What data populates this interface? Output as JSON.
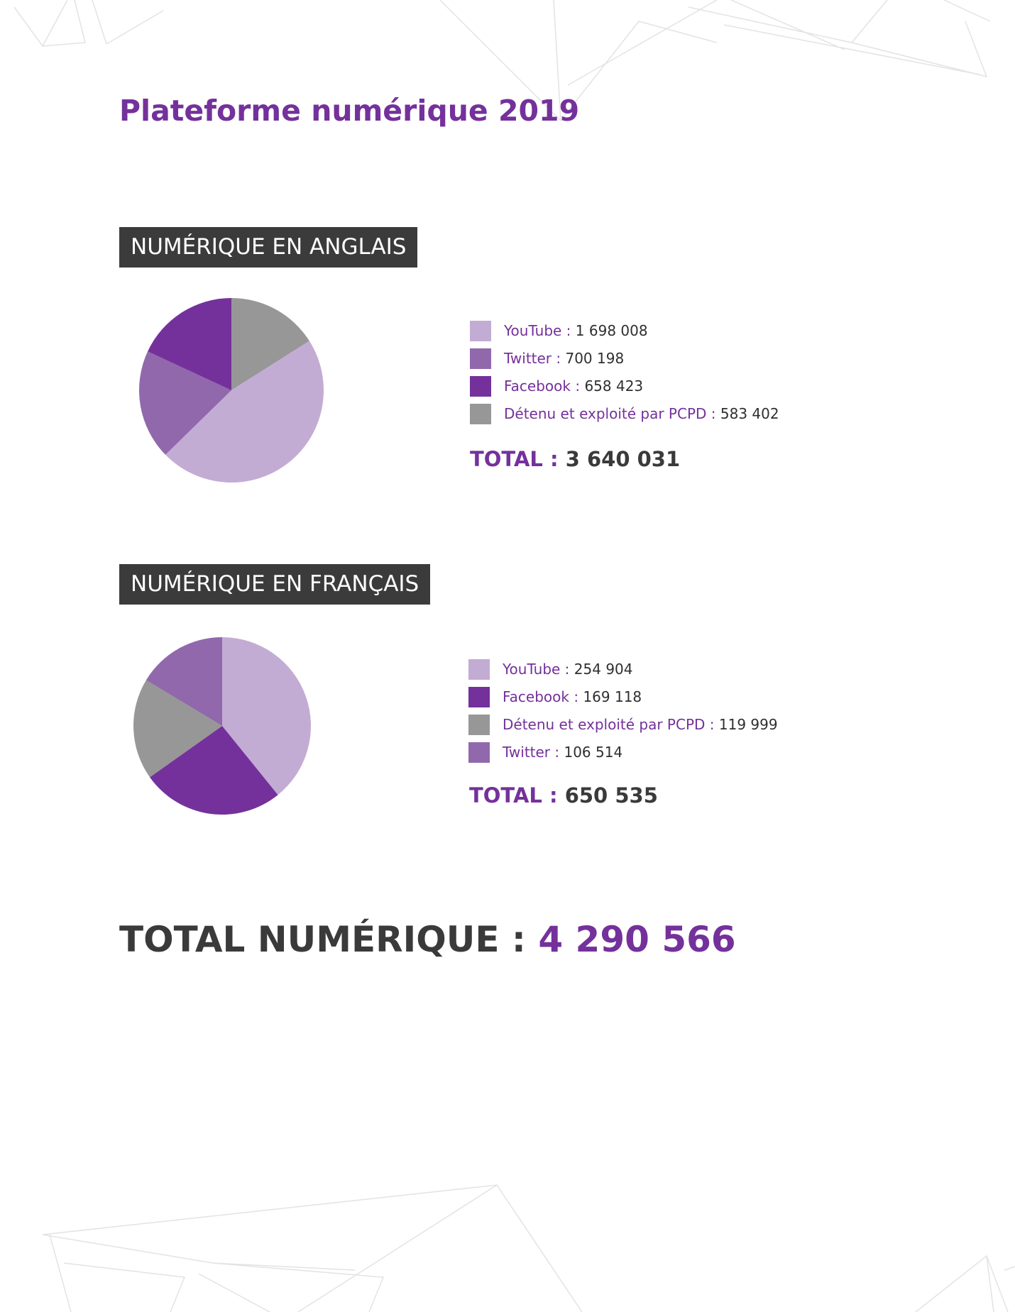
{
  "page_title": "Plateforme numérique 2019",
  "sections": {
    "en": {
      "label": "NUMÉRIQUE EN ANGLAIS",
      "total_label": "TOTAL :",
      "total_value": "3 640 031"
    },
    "fr": {
      "label": "NUMÉRIQUE EN FRANÇAIS",
      "total_label": "TOTAL :",
      "total_value": "650 535"
    }
  },
  "grand_total": {
    "label": "TOTAL NUMÉRIQUE :",
    "value": "4 290 566"
  },
  "colors": {
    "youtube": "#c3acd3",
    "twitter": "#9168ac",
    "facebook": "#74319b",
    "pcpd": "#979797"
  },
  "chart_data": [
    {
      "type": "pie",
      "title": "NUMÉRIQUE EN ANGLAIS",
      "slices": [
        {
          "name": "YouTube",
          "display": "1 698 008",
          "value": 1698008,
          "color": "#c3acd3"
        },
        {
          "name": "Twitter",
          "display": "700 198",
          "value": 700198,
          "color": "#9168ac"
        },
        {
          "name": "Facebook",
          "display": "658 423",
          "value": 658423,
          "color": "#74319b"
        },
        {
          "name": "Détenu et exploité par PCPD",
          "display": "583 402",
          "value": 583402,
          "color": "#979797"
        }
      ],
      "pie_order": [
        "Détenu et exploité par PCPD",
        "YouTube",
        "Twitter",
        "Facebook"
      ]
    },
    {
      "type": "pie",
      "title": "NUMÉRIQUE EN FRANÇAIS",
      "slices": [
        {
          "name": "YouTube",
          "display": "254 904",
          "value": 254904,
          "color": "#c3acd3"
        },
        {
          "name": "Facebook",
          "display": "169 118",
          "value": 169118,
          "color": "#74319b"
        },
        {
          "name": "Détenu et exploité par PCPD",
          "display": "119 999",
          "value": 119999,
          "color": "#979797"
        },
        {
          "name": "Twitter",
          "display": "106 514",
          "value": 106514,
          "color": "#9168ac"
        }
      ],
      "pie_order": [
        "YouTube",
        "Facebook",
        "Détenu et exploité par PCPD",
        "Twitter"
      ]
    }
  ]
}
